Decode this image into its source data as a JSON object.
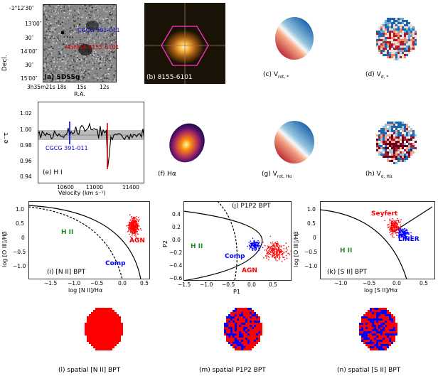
{
  "panels": {
    "a": {
      "label": "(a) SDSSg",
      "ylabel": "Decl.",
      "xlabel": "R.A.",
      "yticks": [
        "-1°12′30″",
        "13′00″",
        "30″",
        "14′00″",
        "30″",
        "15′00″"
      ],
      "xticks": [
        "3h35m21s",
        "18s",
        "15s",
        "12s"
      ],
      "ann_cgcg": "CGCG 391-011",
      "ann_manga": "MaNGA 8155-6101"
    },
    "b": {
      "label": "(b) 8155-6101"
    },
    "c": {
      "label": "(c) V",
      "sub": "rot, *"
    },
    "d": {
      "label": "(d) V",
      "sub": "σ, *"
    },
    "e": {
      "label": "(e) H I",
      "ylabel": "e⁻τ",
      "xlabel": "Velocity (km s⁻¹)",
      "yticks": [
        "1.02",
        "1.00",
        "0.98",
        "0.96",
        "0.94"
      ],
      "xticks": [
        "10600",
        "11000",
        "11400"
      ],
      "ann": "CGCG 391-011"
    },
    "f": {
      "label": "(f) Hα"
    },
    "g": {
      "label": "(g) V",
      "sub": "rot, Hα"
    },
    "h": {
      "label": "(h) V",
      "sub": "σ, Hα"
    },
    "i": {
      "label": "(i) [N II] BPT",
      "ylabel": "log [O III]/Hβ",
      "xlabel": "log [N II]/Hα",
      "xticks": [
        "−1.5",
        "−1.0",
        "−0.5",
        "0.0",
        "0.5"
      ],
      "yticks": [
        "1.0",
        "0.5",
        "0",
        "−0.5",
        "−1.0"
      ],
      "region_hii": "H II",
      "region_agn": "AGN",
      "region_comp": "Comp"
    },
    "j": {
      "label": "(j) P1P2 BPT",
      "ylabel": "P2",
      "xlabel": "P1",
      "xticks": [
        "−1.5",
        "−1.0",
        "−0.5",
        "0.0",
        "0.5"
      ],
      "yticks": [
        "0.4",
        "0.2",
        "0.0",
        "−0.2",
        "−0.4",
        "−0.6"
      ],
      "region_hii": "H II",
      "region_agn": "AGN",
      "region_comp": "Comp"
    },
    "k": {
      "label": "(k) [S II] BPT",
      "ylabel": "log [O III]/Hβ",
      "xlabel": "log [S II]/Hα",
      "xticks": [
        "−1.0",
        "−0.5",
        "0.0",
        "0.5"
      ],
      "yticks": [
        "1.0",
        "0.5",
        "0",
        "−0.5",
        "−1.0"
      ],
      "region_hii": "H II",
      "region_seyfert": "Seyfert",
      "region_liner": "LINER"
    },
    "l": {
      "label": "(l) spatial [N II] BPT"
    },
    "m": {
      "label": "(m) spatial P1P2 BPT"
    },
    "n": {
      "label": "(n) spatial [S II] BPT"
    }
  },
  "colors": {
    "agn": "#ff0000",
    "comp": "#0000ff",
    "hii": "#228b22"
  }
}
